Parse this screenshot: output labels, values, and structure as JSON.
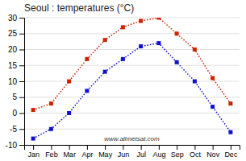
{
  "chart_data": {
    "type": "line",
    "title": "Seoul : temperatures (°C)",
    "categories": [
      "Jan",
      "Feb",
      "Mar",
      "Apr",
      "May",
      "Jun",
      "Jul",
      "Aug",
      "Sep",
      "Oct",
      "Nov",
      "Dec"
    ],
    "series": [
      {
        "color": "#cc2200",
        "marker": "square",
        "line_style": "dotted",
        "values": [
          1,
          3,
          10,
          17,
          23,
          27,
          29,
          30,
          25,
          20,
          11,
          3
        ]
      },
      {
        "color": "#1111cc",
        "marker": "square",
        "line_style": "dotted",
        "values": [
          -8,
          -5,
          0,
          7,
          13,
          17,
          21,
          22,
          16,
          10,
          2,
          -6
        ]
      }
    ],
    "ylim": [
      -10,
      30
    ],
    "yticks": [
      -10,
      -5,
      0,
      5,
      10,
      15,
      20,
      25,
      30
    ],
    "grid": true,
    "annotations": [
      "www.allmetsat.com"
    ]
  }
}
